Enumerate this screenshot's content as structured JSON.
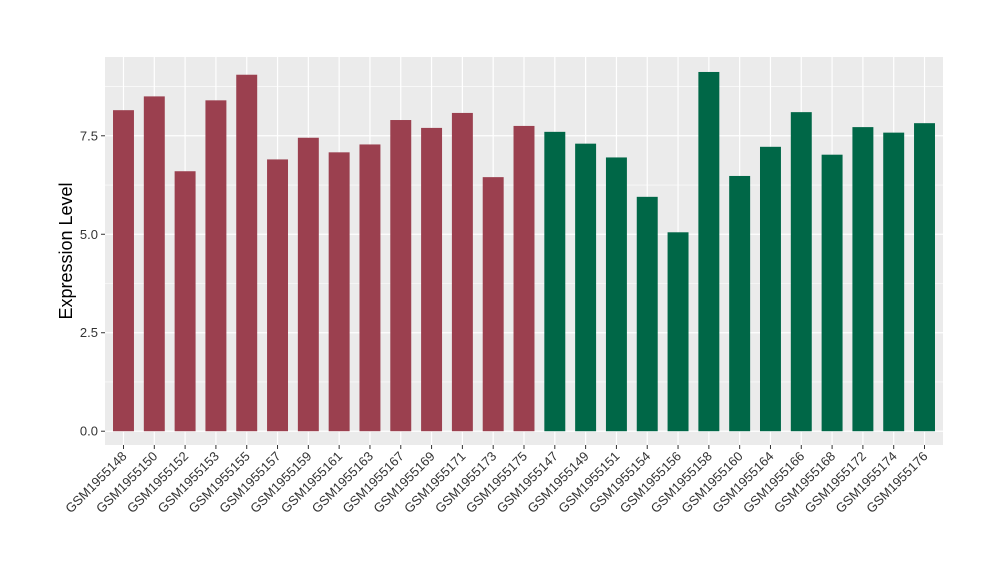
{
  "chart_data": {
    "type": "bar",
    "title": "",
    "xlabel": "",
    "ylabel": "Expression Level",
    "ylim": [
      -0.35,
      9.5
    ],
    "yticks": [
      0.0,
      2.5,
      5.0,
      7.5
    ],
    "ytick_labels": [
      "0.0",
      "2.5",
      "5.0",
      "7.5"
    ],
    "grid": true,
    "legend": "none",
    "background": "#ebebeb",
    "grid_color": "#ffffff",
    "categories": [
      "GSM1955148",
      "GSM1955150",
      "GSM1955152",
      "GSM1955153",
      "GSM1955155",
      "GSM1955157",
      "GSM1955159",
      "GSM1955161",
      "GSM1955163",
      "GSM1955167",
      "GSM1955169",
      "GSM1955171",
      "GSM1955173",
      "GSM1955175",
      "GSM1955147",
      "GSM1955149",
      "GSM1955151",
      "GSM1955154",
      "GSM1955156",
      "GSM1955158",
      "GSM1955160",
      "GSM1955164",
      "GSM1955166",
      "GSM1955168",
      "GSM1955172",
      "GSM1955174",
      "GSM1955176"
    ],
    "values": [
      8.15,
      8.5,
      6.6,
      8.4,
      9.05,
      6.9,
      7.45,
      7.08,
      7.28,
      7.9,
      7.7,
      8.08,
      6.45,
      7.75,
      7.6,
      7.3,
      6.95,
      5.95,
      5.05,
      9.12,
      6.48,
      7.22,
      8.1,
      7.02,
      7.72,
      7.58,
      7.82
    ],
    "bar_colors": [
      "#9b404f",
      "#9b404f",
      "#9b404f",
      "#9b404f",
      "#9b404f",
      "#9b404f",
      "#9b404f",
      "#9b404f",
      "#9b404f",
      "#9b404f",
      "#9b404f",
      "#9b404f",
      "#9b404f",
      "#9b404f",
      "#006747",
      "#006747",
      "#006747",
      "#006747",
      "#006747",
      "#006747",
      "#006747",
      "#006747",
      "#006747",
      "#006747",
      "#006747",
      "#006747",
      "#006747"
    ]
  }
}
